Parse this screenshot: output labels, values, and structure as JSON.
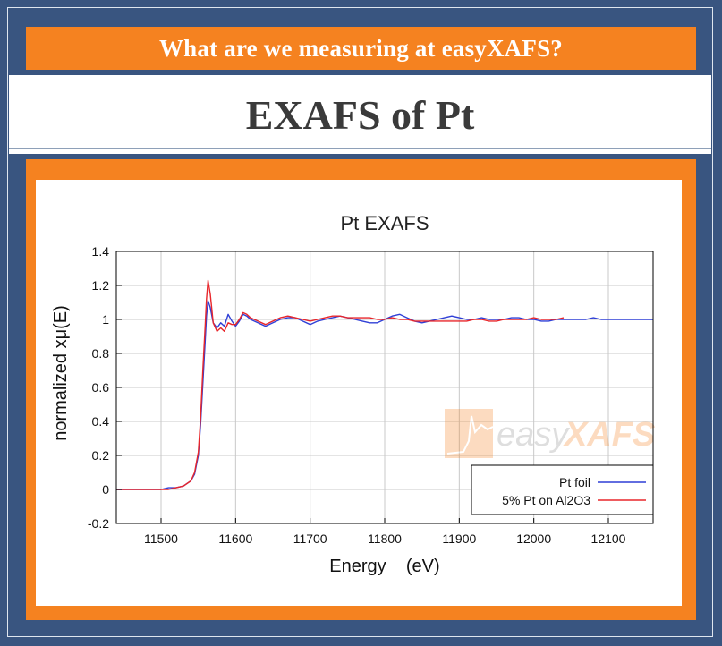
{
  "header": {
    "question": "What are we measuring at easyXAFS?"
  },
  "title": {
    "text": "EXAFS of Pt"
  },
  "watermark": {
    "text_easy": "easy",
    "text_xafs": "XAFS"
  },
  "colors": {
    "background": "#395580",
    "accent": "#f58220",
    "series_blue": "#2f3fd6",
    "series_red": "#e8262b"
  },
  "chart_data": {
    "type": "line",
    "title": "Pt EXAFS",
    "xlabel": "Energy    (eV)",
    "ylabel": "normalized xμ(E)",
    "xlim": [
      11440,
      12160
    ],
    "ylim": [
      -0.2,
      1.4
    ],
    "xticks": [
      11500,
      11600,
      11700,
      11800,
      11900,
      12000,
      12100
    ],
    "yticks": [
      -0.2,
      0,
      0.2,
      0.4,
      0.6,
      0.8,
      1,
      1.2,
      1.4
    ],
    "ytick_labels": [
      "-0.2",
      "0",
      "0.2",
      "0.4",
      "0.6",
      "0.8",
      "1",
      "1.2",
      "1.4"
    ],
    "grid": true,
    "legend_position": "bottom-right",
    "series": [
      {
        "name": "Pt foil",
        "color": "#2f3fd6",
        "x": [
          11440,
          11460,
          11480,
          11500,
          11510,
          11520,
          11530,
          11540,
          11545,
          11550,
          11553,
          11556,
          11559,
          11561,
          11563,
          11566,
          11570,
          11575,
          11580,
          11585,
          11590,
          11595,
          11600,
          11605,
          11610,
          11615,
          11620,
          11630,
          11640,
          11650,
          11660,
          11670,
          11680,
          11690,
          11700,
          11710,
          11720,
          11730,
          11740,
          11750,
          11760,
          11770,
          11780,
          11790,
          11800,
          11810,
          11820,
          11830,
          11840,
          11850,
          11860,
          11870,
          11880,
          11890,
          11900,
          11910,
          11920,
          11930,
          11940,
          11950,
          11960,
          11970,
          11980,
          11990,
          12000,
          12010,
          12020,
          12030,
          12040,
          12050,
          12060,
          12070,
          12080,
          12090,
          12100,
          12110,
          12120,
          12130,
          12140,
          12150,
          12160
        ],
        "values": [
          0.0,
          0.0,
          0.0,
          0.0,
          0.01,
          0.01,
          0.02,
          0.05,
          0.09,
          0.2,
          0.38,
          0.62,
          0.86,
          1.02,
          1.11,
          1.07,
          0.98,
          0.95,
          0.98,
          0.96,
          1.03,
          0.99,
          0.96,
          0.99,
          1.03,
          1.02,
          1.0,
          0.98,
          0.96,
          0.98,
          1.0,
          1.01,
          1.01,
          0.99,
          0.97,
          0.99,
          1.0,
          1.01,
          1.02,
          1.01,
          1.0,
          0.99,
          0.98,
          0.98,
          1.0,
          1.02,
          1.03,
          1.01,
          0.99,
          0.98,
          0.99,
          1.0,
          1.01,
          1.02,
          1.01,
          1.0,
          1.0,
          1.01,
          1.0,
          1.0,
          1.0,
          1.01,
          1.01,
          1.0,
          1.0,
          0.99,
          0.99,
          1.0,
          1.0,
          1.0,
          1.0,
          1.0,
          1.01,
          1.0,
          1.0,
          1.0,
          1.0,
          1.0,
          1.0,
          1.0,
          1.0
        ]
      },
      {
        "name": "5% Pt on Al2O3",
        "color": "#e8262b",
        "x": [
          11440,
          11460,
          11480,
          11500,
          11510,
          11520,
          11530,
          11540,
          11545,
          11550,
          11553,
          11556,
          11559,
          11561,
          11563,
          11566,
          11570,
          11575,
          11580,
          11585,
          11590,
          11595,
          11600,
          11605,
          11610,
          11615,
          11620,
          11630,
          11640,
          11650,
          11660,
          11670,
          11680,
          11690,
          11700,
          11710,
          11720,
          11730,
          11740,
          11750,
          11760,
          11770,
          11780,
          11790,
          11800,
          11810,
          11820,
          11830,
          11840,
          11850,
          11860,
          11870,
          11880,
          11890,
          11900,
          11910,
          11920,
          11930,
          11940,
          11950,
          11960,
          11970,
          11980,
          11990,
          12000,
          12010,
          12020,
          12030,
          12040
        ],
        "values": [
          0.0,
          0.0,
          0.0,
          0.0,
          0.0,
          0.01,
          0.02,
          0.05,
          0.1,
          0.22,
          0.42,
          0.7,
          0.95,
          1.12,
          1.23,
          1.15,
          0.98,
          0.93,
          0.95,
          0.93,
          0.98,
          0.97,
          0.97,
          1.0,
          1.04,
          1.03,
          1.01,
          0.99,
          0.97,
          0.99,
          1.01,
          1.02,
          1.01,
          1.0,
          0.99,
          1.0,
          1.01,
          1.02,
          1.02,
          1.01,
          1.01,
          1.01,
          1.01,
          1.0,
          1.0,
          1.01,
          1.0,
          1.0,
          0.99,
          0.99,
          0.99,
          0.99,
          0.99,
          0.99,
          0.99,
          0.99,
          1.0,
          1.0,
          0.99,
          0.99,
          1.0,
          1.0,
          1.0,
          1.0,
          1.01,
          1.0,
          1.0,
          1.0,
          1.01
        ]
      }
    ]
  }
}
